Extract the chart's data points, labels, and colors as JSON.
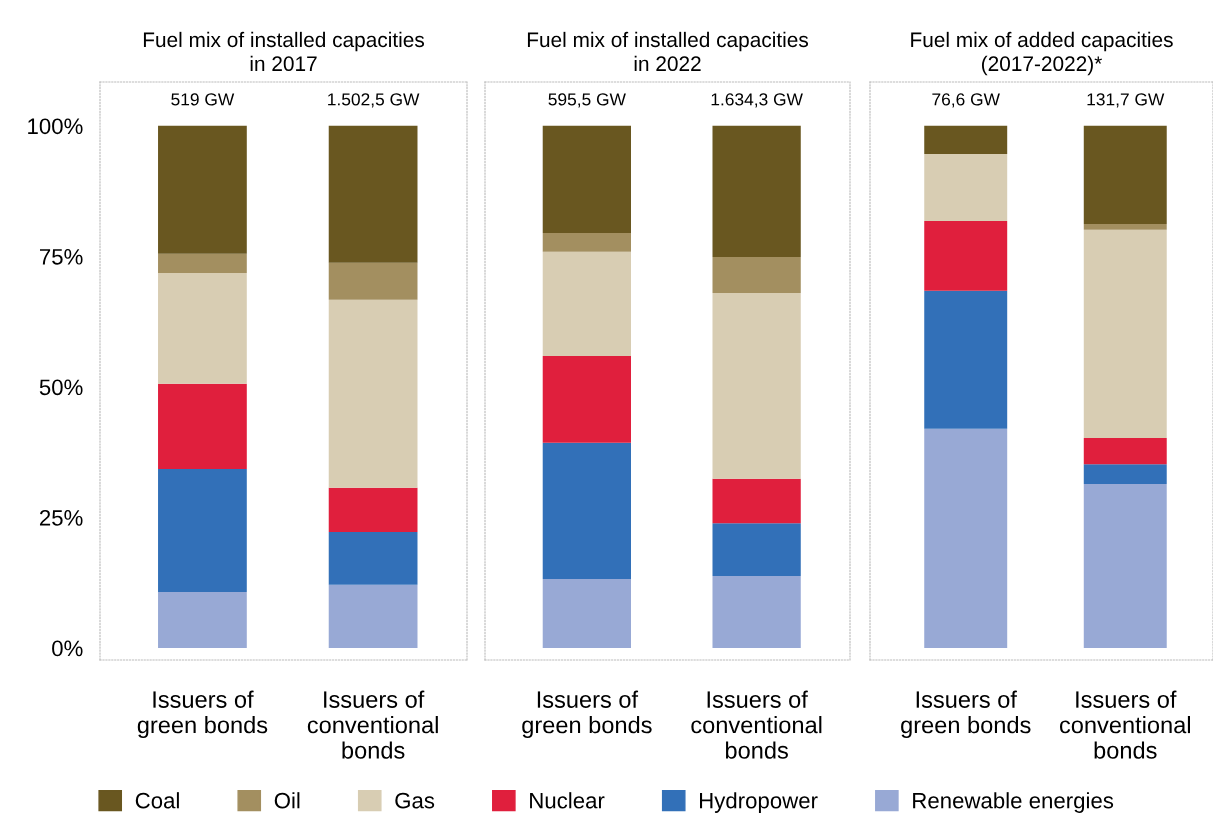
{
  "chart_data": [
    {
      "type": "bar",
      "stacked": true,
      "title": "Fuel mix of installed capacities\nin 2017",
      "categories": [
        "Issuers of\ngreen bonds",
        "Issuers of\nconventional\nbonds"
      ],
      "ylim": [
        -2.3,
        108.4
      ],
      "yticks": [
        {
          "value": 0,
          "label": "0%"
        },
        {
          "value": 25,
          "label": "25%"
        },
        {
          "value": 50,
          "label": "50%"
        },
        {
          "value": 75,
          "label": "75%"
        },
        {
          "value": 100,
          "label": "100%"
        }
      ],
      "annotations": [
        {
          "text": "519 GW",
          "x": "Issuers of\ngreen bonds",
          "y": 100
        },
        {
          "text": "1.502,5 GW",
          "x": "Issuers of\nconventional\nbonds",
          "y": 100
        }
      ],
      "legend": "bottom",
      "grid": false,
      "series": [
        {
          "name": "Renewable energies",
          "color": "#98a9d5",
          "values": [
            10.7,
            12.1
          ]
        },
        {
          "name": "Hydropower",
          "color": "#3270b8",
          "values": [
            23.6,
            10.1
          ]
        },
        {
          "name": "Nuclear",
          "color": "#e01f3d",
          "values": [
            16.3,
            8.5
          ]
        },
        {
          "name": "Gas",
          "color": "#d8cdb3",
          "values": [
            21.2,
            36.0
          ]
        },
        {
          "name": "Oil",
          "color": "#a38f60",
          "values": [
            3.7,
            7.1
          ]
        },
        {
          "name": "Coal",
          "color": "#695720",
          "values": [
            24.5,
            26.2
          ]
        }
      ]
    },
    {
      "type": "bar",
      "stacked": true,
      "title": "Fuel mix of installed capacities\nin 2022",
      "categories": [
        "Issuers of\ngreen bonds",
        "Issuers of\nconventional\nbonds"
      ],
      "ylim": [
        -2.3,
        108.4
      ],
      "tick_labels": "x",
      "annotations": [
        {
          "text": "595,5 GW",
          "x": "Issuers of\ngreen bonds",
          "y": 100
        },
        {
          "text": "1.634,3 GW",
          "x": "Issuers of\nconventional\nbonds",
          "y": 100
        }
      ],
      "grid": false,
      "series": [
        {
          "color": "#98a9d5",
          "values": [
            13.2,
            13.8
          ]
        },
        {
          "color": "#3270b8",
          "values": [
            26.1,
            10.1
          ]
        },
        {
          "color": "#e01f3d",
          "values": [
            16.6,
            8.5
          ]
        },
        {
          "color": "#d8cdb3",
          "values": [
            20.0,
            35.6
          ]
        },
        {
          "color": "#a38f60",
          "values": [
            3.6,
            6.9
          ]
        },
        {
          "color": "#695720",
          "values": [
            20.5,
            25.1
          ]
        }
      ]
    },
    {
      "type": "bar",
      "stacked": true,
      "title": "Fuel mix of added capacities\n(2017-2022)*",
      "categories": [
        "Issuers of\ngreen bonds",
        "Issuers of\nconventional\nbonds"
      ],
      "ylim": [
        -2.3,
        108.4
      ],
      "tick_labels": "x",
      "annotations": [
        {
          "text": "76,6 GW",
          "x": "Issuers of\ngreen bonds",
          "y": 100
        },
        {
          "text": "131,7 GW",
          "x": "Issuers of\nconventional\nbonds",
          "y": 100
        }
      ],
      "grid": false,
      "series": [
        {
          "color": "#98a9d5",
          "values": [
            42.0,
            31.4
          ]
        },
        {
          "color": "#3270b8",
          "values": [
            26.4,
            3.8
          ]
        },
        {
          "color": "#e01f3d",
          "values": [
            13.4,
            5.0
          ]
        },
        {
          "color": "#d8cdb3",
          "values": [
            12.8,
            39.9
          ]
        },
        {
          "color": "#a38f60",
          "values": [
            0,
            1.1
          ]
        },
        {
          "color": "#695720",
          "values": [
            5.4,
            18.8
          ]
        }
      ]
    }
  ]
}
